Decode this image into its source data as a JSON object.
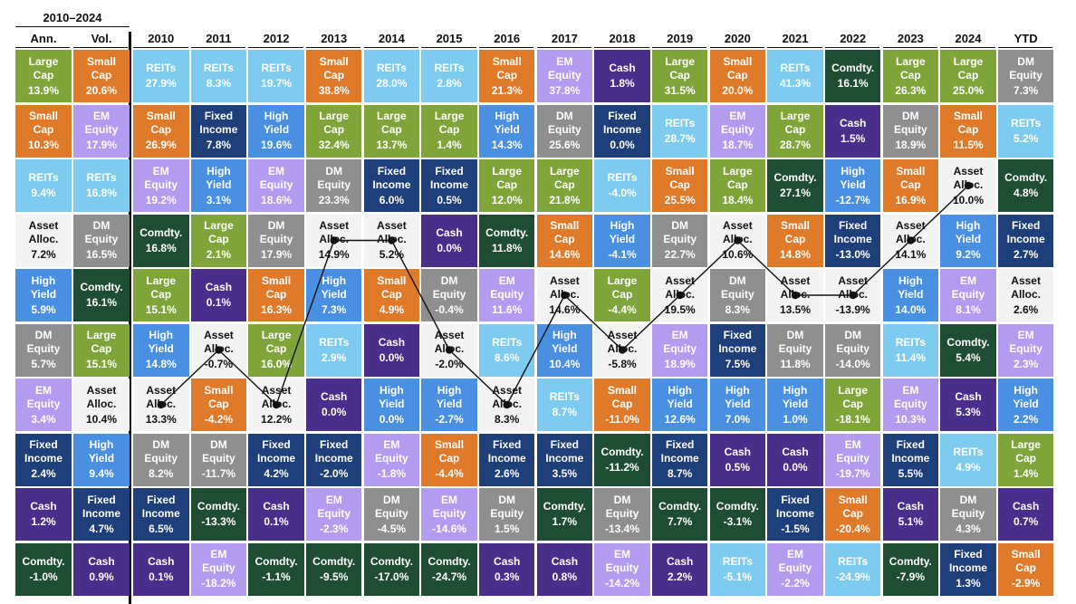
{
  "header": {
    "range_label": "2010–2024",
    "ann_label": "Ann.",
    "vol_label": "Vol.",
    "years": [
      "2010",
      "2011",
      "2012",
      "2013",
      "2014",
      "2015",
      "2016",
      "2017",
      "2018",
      "2019",
      "2020",
      "2021",
      "2022",
      "2023",
      "2024",
      "YTD"
    ]
  },
  "colors": {
    "REITs": {
      "bg": "#7dcbee",
      "fg": "#ffffff"
    },
    "Small Cap": {
      "bg": "#e07a2b",
      "fg": "#ffffff"
    },
    "EM Equity": {
      "bg": "#b39bf0",
      "fg": "#ffffff"
    },
    "Cash": {
      "bg": "#4a2e8c",
      "fg": "#ffffff"
    },
    "Large Cap": {
      "bg": "#7fa53a",
      "fg": "#ffffff"
    },
    "Comdty.": {
      "bg": "#1f4d33",
      "fg": "#ffffff"
    },
    "DM Equity": {
      "bg": "#8f8f8f",
      "fg": "#ffffff"
    },
    "Fixed Income": {
      "bg": "#1f3f7a",
      "fg": "#ffffff"
    },
    "High Yield": {
      "bg": "#4a90e2",
      "fg": "#ffffff"
    },
    "Asset Alloc.": {
      "bg": "#f3f3f3",
      "fg": "#111111"
    }
  },
  "display_labels": {
    "REITs": "REITs",
    "Small Cap": "Small\nCap",
    "EM Equity": "EM\nEquity",
    "Cash": "Cash",
    "Large Cap": "Large\nCap",
    "Comdty.": "Comdty.",
    "DM Equity": "DM\nEquity",
    "Fixed Income": "Fixed\nIncome",
    "High Yield": "High\nYield",
    "Asset Alloc.": "Asset\nAlloc."
  },
  "chart_data": {
    "type": "table",
    "summary_columns": {
      "ann": [
        {
          "asset": "Large Cap",
          "value": "13.9%"
        },
        {
          "asset": "Small Cap",
          "value": "10.3%"
        },
        {
          "asset": "REITs",
          "value": "9.4%"
        },
        {
          "asset": "Asset Alloc.",
          "value": "7.2%"
        },
        {
          "asset": "High Yield",
          "value": "5.9%"
        },
        {
          "asset": "DM Equity",
          "value": "5.7%"
        },
        {
          "asset": "EM Equity",
          "value": "3.4%"
        },
        {
          "asset": "Fixed Income",
          "value": "2.4%"
        },
        {
          "asset": "Cash",
          "value": "1.2%"
        },
        {
          "asset": "Comdty.",
          "value": "-1.0%"
        }
      ],
      "vol": [
        {
          "asset": "Small Cap",
          "value": "20.6%"
        },
        {
          "asset": "EM Equity",
          "value": "17.9%"
        },
        {
          "asset": "REITs",
          "value": "16.8%"
        },
        {
          "asset": "DM Equity",
          "value": "16.5%"
        },
        {
          "asset": "Comdty.",
          "value": "16.1%"
        },
        {
          "asset": "Large Cap",
          "value": "15.1%"
        },
        {
          "asset": "Asset Alloc.",
          "value": "10.4%"
        },
        {
          "asset": "High Yield",
          "value": "9.4%"
        },
        {
          "asset": "Fixed Income",
          "value": "4.7%"
        },
        {
          "asset": "Cash",
          "value": "0.9%"
        }
      ]
    },
    "years": [
      {
        "year": "2010",
        "cells": [
          {
            "asset": "REITs",
            "value": "27.9%"
          },
          {
            "asset": "Small Cap",
            "value": "26.9%"
          },
          {
            "asset": "EM Equity",
            "value": "19.2%"
          },
          {
            "asset": "Comdty.",
            "value": "16.8%"
          },
          {
            "asset": "Large Cap",
            "value": "15.1%"
          },
          {
            "asset": "High Yield",
            "value": "14.8%"
          },
          {
            "asset": "Asset Alloc.",
            "value": "13.3%"
          },
          {
            "asset": "DM Equity",
            "value": "8.2%"
          },
          {
            "asset": "Fixed Income",
            "value": "6.5%"
          },
          {
            "asset": "Cash",
            "value": "0.1%"
          }
        ]
      },
      {
        "year": "2011",
        "cells": [
          {
            "asset": "REITs",
            "value": "8.3%"
          },
          {
            "asset": "Fixed Income",
            "value": "7.8%"
          },
          {
            "asset": "High Yield",
            "value": "3.1%"
          },
          {
            "asset": "Large Cap",
            "value": "2.1%"
          },
          {
            "asset": "Cash",
            "value": "0.1%"
          },
          {
            "asset": "Asset Alloc.",
            "value": "-0.7%"
          },
          {
            "asset": "Small Cap",
            "value": "-4.2%"
          },
          {
            "asset": "DM Equity",
            "value": "-11.7%"
          },
          {
            "asset": "Comdty.",
            "value": "-13.3%"
          },
          {
            "asset": "EM Equity",
            "value": "-18.2%"
          }
        ]
      },
      {
        "year": "2012",
        "cells": [
          {
            "asset": "REITs",
            "value": "19.7%"
          },
          {
            "asset": "High Yield",
            "value": "19.6%"
          },
          {
            "asset": "EM Equity",
            "value": "18.6%"
          },
          {
            "asset": "DM Equity",
            "value": "17.9%"
          },
          {
            "asset": "Small Cap",
            "value": "16.3%"
          },
          {
            "asset": "Large Cap",
            "value": "16.0%"
          },
          {
            "asset": "Asset Alloc.",
            "value": "12.2%"
          },
          {
            "asset": "Fixed Income",
            "value": "4.2%"
          },
          {
            "asset": "Cash",
            "value": "0.1%"
          },
          {
            "asset": "Comdty.",
            "value": "-1.1%"
          }
        ]
      },
      {
        "year": "2013",
        "cells": [
          {
            "asset": "Small Cap",
            "value": "38.8%"
          },
          {
            "asset": "Large Cap",
            "value": "32.4%"
          },
          {
            "asset": "DM Equity",
            "value": "23.3%"
          },
          {
            "asset": "Asset Alloc.",
            "value": "14.9%"
          },
          {
            "asset": "High Yield",
            "value": "7.3%"
          },
          {
            "asset": "REITs",
            "value": "2.9%"
          },
          {
            "asset": "Cash",
            "value": "0.0%"
          },
          {
            "asset": "Fixed Income",
            "value": "-2.0%"
          },
          {
            "asset": "EM Equity",
            "value": "-2.3%"
          },
          {
            "asset": "Comdty.",
            "value": "-9.5%"
          }
        ]
      },
      {
        "year": "2014",
        "cells": [
          {
            "asset": "REITs",
            "value": "28.0%"
          },
          {
            "asset": "Large Cap",
            "value": "13.7%"
          },
          {
            "asset": "Fixed Income",
            "value": "6.0%"
          },
          {
            "asset": "Asset Alloc.",
            "value": "5.2%"
          },
          {
            "asset": "Small Cap",
            "value": "4.9%"
          },
          {
            "asset": "Cash",
            "value": "0.0%"
          },
          {
            "asset": "High Yield",
            "value": "0.0%"
          },
          {
            "asset": "EM Equity",
            "value": "-1.8%"
          },
          {
            "asset": "DM Equity",
            "value": "-4.5%"
          },
          {
            "asset": "Comdty.",
            "value": "-17.0%"
          }
        ]
      },
      {
        "year": "2015",
        "cells": [
          {
            "asset": "REITs",
            "value": "2.8%"
          },
          {
            "asset": "Large Cap",
            "value": "1.4%"
          },
          {
            "asset": "Fixed Income",
            "value": "0.5%"
          },
          {
            "asset": "Cash",
            "value": "0.0%"
          },
          {
            "asset": "DM Equity",
            "value": "-0.4%"
          },
          {
            "asset": "Asset Alloc.",
            "value": "-2.0%"
          },
          {
            "asset": "High Yield",
            "value": "-2.7%"
          },
          {
            "asset": "Small Cap",
            "value": "-4.4%"
          },
          {
            "asset": "EM Equity",
            "value": "-14.6%"
          },
          {
            "asset": "Comdty.",
            "value": "-24.7%"
          }
        ]
      },
      {
        "year": "2016",
        "cells": [
          {
            "asset": "Small Cap",
            "value": "21.3%"
          },
          {
            "asset": "High Yield",
            "value": "14.3%"
          },
          {
            "asset": "Large Cap",
            "value": "12.0%"
          },
          {
            "asset": "Comdty.",
            "value": "11.8%"
          },
          {
            "asset": "EM Equity",
            "value": "11.6%"
          },
          {
            "asset": "REITs",
            "value": "8.6%"
          },
          {
            "asset": "Asset Alloc.",
            "value": "8.3%"
          },
          {
            "asset": "Fixed Income",
            "value": "2.6%"
          },
          {
            "asset": "DM Equity",
            "value": "1.5%"
          },
          {
            "asset": "Cash",
            "value": "0.3%"
          }
        ]
      },
      {
        "year": "2017",
        "cells": [
          {
            "asset": "EM Equity",
            "value": "37.8%"
          },
          {
            "asset": "DM Equity",
            "value": "25.6%"
          },
          {
            "asset": "Large Cap",
            "value": "21.8%"
          },
          {
            "asset": "Small Cap",
            "value": "14.6%"
          },
          {
            "asset": "Asset Alloc.",
            "value": "14.6%"
          },
          {
            "asset": "High Yield",
            "value": "10.4%"
          },
          {
            "asset": "REITs",
            "value": "8.7%"
          },
          {
            "asset": "Fixed Income",
            "value": "3.5%"
          },
          {
            "asset": "Comdty.",
            "value": "1.7%"
          },
          {
            "asset": "Cash",
            "value": "0.8%"
          }
        ]
      },
      {
        "year": "2018",
        "cells": [
          {
            "asset": "Cash",
            "value": "1.8%"
          },
          {
            "asset": "Fixed Income",
            "value": "0.0%"
          },
          {
            "asset": "REITs",
            "value": "-4.0%"
          },
          {
            "asset": "High Yield",
            "value": "-4.1%"
          },
          {
            "asset": "Large Cap",
            "value": "-4.4%"
          },
          {
            "asset": "Asset Alloc.",
            "value": "-5.8%"
          },
          {
            "asset": "Small Cap",
            "value": "-11.0%"
          },
          {
            "asset": "Comdty.",
            "value": "-11.2%"
          },
          {
            "asset": "DM Equity",
            "value": "-13.4%"
          },
          {
            "asset": "EM Equity",
            "value": "-14.2%"
          }
        ]
      },
      {
        "year": "2019",
        "cells": [
          {
            "asset": "Large Cap",
            "value": "31.5%"
          },
          {
            "asset": "REITs",
            "value": "28.7%"
          },
          {
            "asset": "Small Cap",
            "value": "25.5%"
          },
          {
            "asset": "DM Equity",
            "value": "22.7%"
          },
          {
            "asset": "Asset Alloc.",
            "value": "19.5%"
          },
          {
            "asset": "EM Equity",
            "value": "18.9%"
          },
          {
            "asset": "High Yield",
            "value": "12.6%"
          },
          {
            "asset": "Fixed Income",
            "value": "8.7%"
          },
          {
            "asset": "Comdty.",
            "value": "7.7%"
          },
          {
            "asset": "Cash",
            "value": "2.2%"
          }
        ]
      },
      {
        "year": "2020",
        "cells": [
          {
            "asset": "Small Cap",
            "value": "20.0%"
          },
          {
            "asset": "EM Equity",
            "value": "18.7%"
          },
          {
            "asset": "Large Cap",
            "value": "18.4%"
          },
          {
            "asset": "Asset Alloc.",
            "value": "10.6%"
          },
          {
            "asset": "DM Equity",
            "value": "8.3%"
          },
          {
            "asset": "Fixed Income",
            "value": "7.5%"
          },
          {
            "asset": "High Yield",
            "value": "7.0%"
          },
          {
            "asset": "Cash",
            "value": "0.5%"
          },
          {
            "asset": "Comdty.",
            "value": "-3.1%"
          },
          {
            "asset": "REITs",
            "value": "-5.1%"
          }
        ]
      },
      {
        "year": "2021",
        "cells": [
          {
            "asset": "REITs",
            "value": "41.3%"
          },
          {
            "asset": "Large Cap",
            "value": "28.7%"
          },
          {
            "asset": "Comdty.",
            "value": "27.1%"
          },
          {
            "asset": "Small Cap",
            "value": "14.8%"
          },
          {
            "asset": "Asset Alloc.",
            "value": "13.5%"
          },
          {
            "asset": "DM Equity",
            "value": "11.8%"
          },
          {
            "asset": "High Yield",
            "value": "1.0%"
          },
          {
            "asset": "Cash",
            "value": "0.0%"
          },
          {
            "asset": "Fixed Income",
            "value": "-1.5%"
          },
          {
            "asset": "EM Equity",
            "value": "-2.2%"
          }
        ]
      },
      {
        "year": "2022",
        "cells": [
          {
            "asset": "Comdty.",
            "value": "16.1%"
          },
          {
            "asset": "Cash",
            "value": "1.5%"
          },
          {
            "asset": "High Yield",
            "value": "-12.7%"
          },
          {
            "asset": "Fixed Income",
            "value": "-13.0%"
          },
          {
            "asset": "Asset Alloc.",
            "value": "-13.9%"
          },
          {
            "asset": "DM Equity",
            "value": "-14.0%"
          },
          {
            "asset": "Large Cap",
            "value": "-18.1%"
          },
          {
            "asset": "EM Equity",
            "value": "-19.7%"
          },
          {
            "asset": "Small Cap",
            "value": "-20.4%"
          },
          {
            "asset": "REITs",
            "value": "-24.9%"
          }
        ]
      },
      {
        "year": "2023",
        "cells": [
          {
            "asset": "Large Cap",
            "value": "26.3%"
          },
          {
            "asset": "DM Equity",
            "value": "18.9%"
          },
          {
            "asset": "Small Cap",
            "value": "16.9%"
          },
          {
            "asset": "Asset Alloc.",
            "value": "14.1%"
          },
          {
            "asset": "High Yield",
            "value": "14.0%"
          },
          {
            "asset": "REITs",
            "value": "11.4%"
          },
          {
            "asset": "EM Equity",
            "value": "10.3%"
          },
          {
            "asset": "Fixed Income",
            "value": "5.5%"
          },
          {
            "asset": "Cash",
            "value": "5.1%"
          },
          {
            "asset": "Comdty.",
            "value": "-7.9%"
          }
        ]
      },
      {
        "year": "2024",
        "cells": [
          {
            "asset": "Large Cap",
            "value": "25.0%"
          },
          {
            "asset": "Small Cap",
            "value": "11.5%"
          },
          {
            "asset": "Asset Alloc.",
            "value": "10.0%"
          },
          {
            "asset": "High Yield",
            "value": "9.2%"
          },
          {
            "asset": "EM Equity",
            "value": "8.1%"
          },
          {
            "asset": "Comdty.",
            "value": "5.4%"
          },
          {
            "asset": "Cash",
            "value": "5.3%"
          },
          {
            "asset": "REITs",
            "value": "4.9%"
          },
          {
            "asset": "DM Equity",
            "value": "4.3%"
          },
          {
            "asset": "Fixed Income",
            "value": "1.3%"
          }
        ]
      },
      {
        "year": "YTD",
        "cells": [
          {
            "asset": "DM Equity",
            "value": "7.3%"
          },
          {
            "asset": "REITs",
            "value": "5.2%"
          },
          {
            "asset": "Comdty.",
            "value": "4.8%"
          },
          {
            "asset": "Fixed Income",
            "value": "2.7%"
          },
          {
            "asset": "Asset Alloc.",
            "value": "2.6%"
          },
          {
            "asset": "EM Equity",
            "value": "2.3%"
          },
          {
            "asset": "High Yield",
            "value": "2.2%"
          },
          {
            "asset": "Large Cap",
            "value": "1.4%"
          },
          {
            "asset": "Cash",
            "value": "0.7%"
          },
          {
            "asset": "Small Cap",
            "value": "-2.9%"
          }
        ]
      }
    ],
    "asset_alloc_line": {
      "asset": "Asset Alloc.",
      "years": [
        "2010",
        "2011",
        "2012",
        "2013",
        "2014",
        "2015",
        "2016",
        "2017",
        "2018",
        "2019",
        "2020",
        "2021",
        "2022",
        "2023",
        "2024"
      ]
    }
  }
}
